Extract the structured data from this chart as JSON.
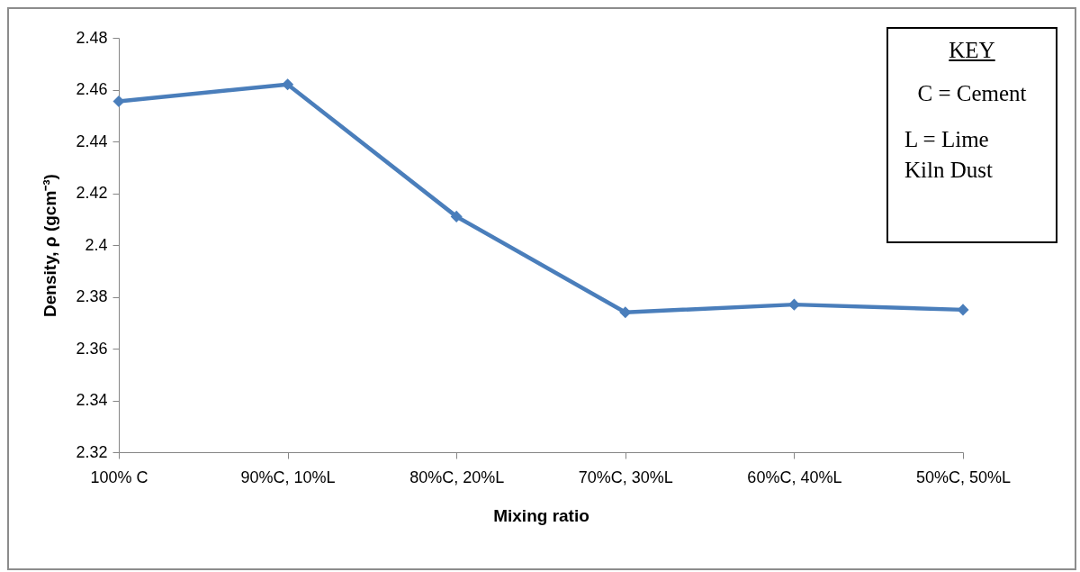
{
  "chart_data": {
    "type": "line",
    "xlabel": "Mixing ratio",
    "ylabel": "Density, ρ (gcm⁻³)",
    "categories": [
      "100% C",
      "90%C, 10%L",
      "80%C, 20%L",
      "70%C, 30%L",
      "60%C, 40%L",
      "50%C, 50%L"
    ],
    "series": [
      {
        "color": "#4a7ebb",
        "values": [
          2.4555,
          2.462,
          2.411,
          2.374,
          2.377,
          2.375
        ]
      }
    ],
    "ylim": [
      2.32,
      2.48
    ],
    "yticks": [
      2.32,
      2.34,
      2.36,
      2.38,
      2.4,
      2.42,
      2.44,
      2.46,
      2.48
    ],
    "grid": false,
    "marker": "diamond",
    "line_style": "solid",
    "annotations": [
      "KEY",
      "C = Cement",
      "L = Lime Kiln Dust"
    ]
  }
}
